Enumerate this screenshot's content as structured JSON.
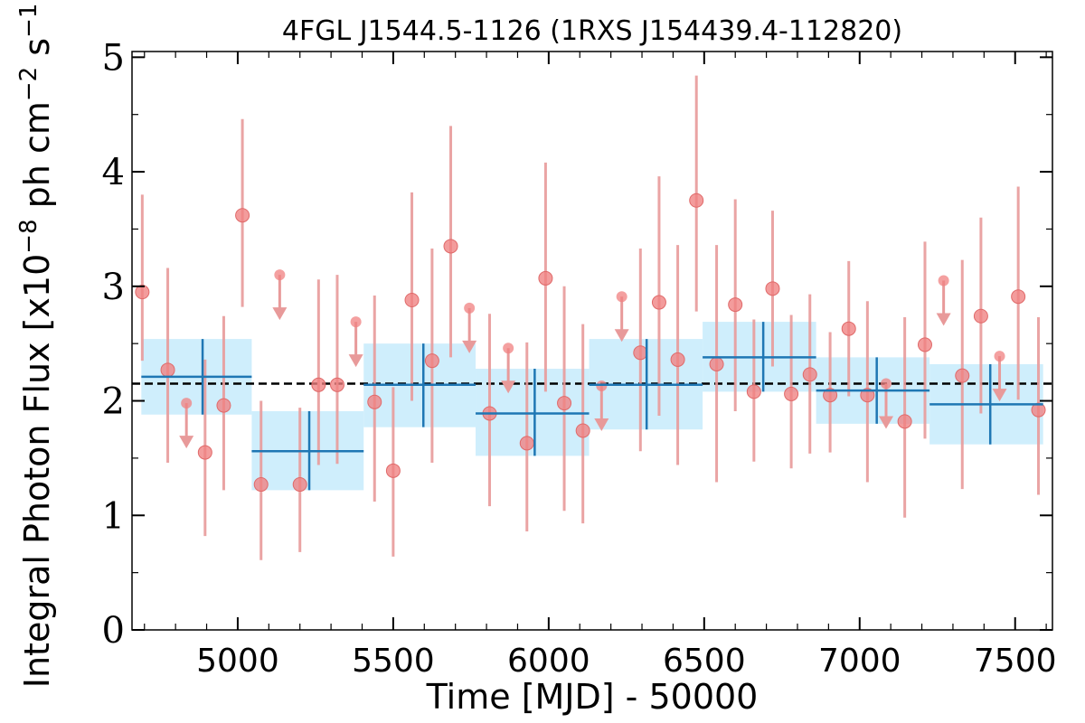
{
  "chart_data": {
    "type": "scatter",
    "title": "4FGL J1544.5-1126 (1RXS J154439.4-112820)",
    "xlabel": "Time [MJD] - 50000",
    "ylabel_parts": [
      "Integral Photon Flux [x10",
      "−8",
      " ph cm",
      "−2",
      " s",
      "−1",
      "]"
    ],
    "xlim": [
      4660,
      7620
    ],
    "ylim": [
      0,
      5.05
    ],
    "xticks": [
      {
        "value": 5000,
        "label": "5000"
      },
      {
        "value": 5500,
        "label": "5500"
      },
      {
        "value": 6000,
        "label": "6000"
      },
      {
        "value": 6500,
        "label": "6500"
      },
      {
        "value": 7000,
        "label": "7000"
      },
      {
        "value": 7500,
        "label": "7500"
      }
    ],
    "yticks": [
      {
        "value": 0,
        "label": "0"
      },
      {
        "value": 1,
        "label": "1"
      },
      {
        "value": 2,
        "label": "2"
      },
      {
        "value": 3,
        "label": "3"
      },
      {
        "value": 4,
        "label": "4"
      },
      {
        "value": 5,
        "label": "5"
      }
    ],
    "mean_flux": 2.15,
    "colors": {
      "points": "#f08080",
      "error_bars": "#e89a9a",
      "bins": "#1f77b4",
      "bin_band": "#cfeefc",
      "mean_line": "#000000"
    },
    "short_bins": [
      {
        "x": 4693,
        "y": 2.95,
        "ylo": 2.35,
        "yhi": 3.8
      },
      {
        "x": 4775,
        "y": 2.27,
        "ylo": 1.46,
        "yhi": 3.16
      },
      {
        "x": 4835,
        "y": 1.98,
        "upper_limit": true
      },
      {
        "x": 4895,
        "y": 1.55,
        "ylo": 0.82,
        "yhi": 2.36
      },
      {
        "x": 4955,
        "y": 1.96,
        "ylo": 1.22,
        "yhi": 2.74
      },
      {
        "x": 5015,
        "y": 3.62,
        "ylo": 2.82,
        "yhi": 4.46
      },
      {
        "x": 5075,
        "y": 1.27,
        "ylo": 0.61,
        "yhi": 2.0
      },
      {
        "x": 5135,
        "y": 3.1,
        "upper_limit": true
      },
      {
        "x": 5200,
        "y": 1.27,
        "ylo": 0.68,
        "yhi": 1.94
      },
      {
        "x": 5260,
        "y": 2.14,
        "ylo": 1.44,
        "yhi": 3.06
      },
      {
        "x": 5320,
        "y": 2.14,
        "ylo": 1.45,
        "yhi": 3.1
      },
      {
        "x": 5380,
        "y": 2.69,
        "upper_limit": true
      },
      {
        "x": 5440,
        "y": 1.99,
        "ylo": 1.12,
        "yhi": 2.92
      },
      {
        "x": 5500,
        "y": 1.39,
        "ylo": 0.64,
        "yhi": 2.12
      },
      {
        "x": 5560,
        "y": 2.88,
        "ylo": 2.0,
        "yhi": 3.82
      },
      {
        "x": 5625,
        "y": 2.35,
        "ylo": 1.46,
        "yhi": 3.33
      },
      {
        "x": 5685,
        "y": 3.35,
        "ylo": 2.38,
        "yhi": 4.4
      },
      {
        "x": 5745,
        "y": 2.81,
        "upper_limit": true
      },
      {
        "x": 5810,
        "y": 1.89,
        "ylo": 1.08,
        "yhi": 2.76
      },
      {
        "x": 5870,
        "y": 2.46,
        "upper_limit": true
      },
      {
        "x": 5930,
        "y": 1.63,
        "ylo": 0.86,
        "yhi": 2.51
      },
      {
        "x": 5990,
        "y": 3.07,
        "ylo": 2.08,
        "yhi": 4.08
      },
      {
        "x": 6050,
        "y": 1.98,
        "ylo": 1.04,
        "yhi": 3.0
      },
      {
        "x": 6110,
        "y": 1.74,
        "ylo": 0.93,
        "yhi": 2.67
      },
      {
        "x": 6170,
        "y": 2.13,
        "upper_limit": true
      },
      {
        "x": 6235,
        "y": 2.91,
        "upper_limit": true
      },
      {
        "x": 6295,
        "y": 2.42,
        "ylo": 1.56,
        "yhi": 3.33
      },
      {
        "x": 6355,
        "y": 2.86,
        "ylo": 1.87,
        "yhi": 3.96
      },
      {
        "x": 6415,
        "y": 2.36,
        "ylo": 1.44,
        "yhi": 3.36
      },
      {
        "x": 6475,
        "y": 3.75,
        "ylo": 2.78,
        "yhi": 4.84
      },
      {
        "x": 6540,
        "y": 2.32,
        "ylo": 1.29,
        "yhi": 3.36
      },
      {
        "x": 6600,
        "y": 2.84,
        "ylo": 1.91,
        "yhi": 3.76
      },
      {
        "x": 6660,
        "y": 2.08,
        "ylo": 1.47,
        "yhi": 2.71
      },
      {
        "x": 6720,
        "y": 2.98,
        "ylo": 2.3,
        "yhi": 3.66
      },
      {
        "x": 6780,
        "y": 2.06,
        "ylo": 1.41,
        "yhi": 2.75
      },
      {
        "x": 6840,
        "y": 2.23,
        "ylo": 1.54,
        "yhi": 2.93
      },
      {
        "x": 6905,
        "y": 2.05,
        "ylo": 1.55,
        "yhi": 2.6
      },
      {
        "x": 6965,
        "y": 2.63,
        "ylo": 2.04,
        "yhi": 3.22
      },
      {
        "x": 7025,
        "y": 2.05,
        "ylo": 1.29,
        "yhi": 2.87
      },
      {
        "x": 7085,
        "y": 2.15,
        "upper_limit": true
      },
      {
        "x": 7145,
        "y": 1.82,
        "ylo": 0.98,
        "yhi": 2.73
      },
      {
        "x": 7210,
        "y": 2.49,
        "ylo": 1.67,
        "yhi": 3.39
      },
      {
        "x": 7270,
        "y": 3.05,
        "upper_limit": true
      },
      {
        "x": 7330,
        "y": 2.22,
        "ylo": 1.23,
        "yhi": 3.23
      },
      {
        "x": 7390,
        "y": 2.74,
        "ylo": 1.89,
        "yhi": 3.6
      },
      {
        "x": 7450,
        "y": 2.39,
        "upper_limit": true
      },
      {
        "x": 7510,
        "y": 2.91,
        "ylo": 2.01,
        "yhi": 3.87
      },
      {
        "x": 7575,
        "y": 1.92,
        "ylo": 1.18,
        "yhi": 2.73
      }
    ],
    "long_bins": [
      {
        "x0": 4690,
        "x1": 5045,
        "xc": 4887,
        "y": 2.21,
        "ylo": 1.88,
        "yhi": 2.54
      },
      {
        "x0": 5045,
        "x1": 5405,
        "xc": 5230,
        "y": 1.56,
        "ylo": 1.22,
        "yhi": 1.91
      },
      {
        "x0": 5405,
        "x1": 5765,
        "xc": 5597,
        "y": 2.14,
        "ylo": 1.77,
        "yhi": 2.5
      },
      {
        "x0": 5765,
        "x1": 6130,
        "xc": 5955,
        "y": 1.89,
        "ylo": 1.52,
        "yhi": 2.28
      },
      {
        "x0": 6130,
        "x1": 6495,
        "xc": 6315,
        "y": 2.14,
        "ylo": 1.75,
        "yhi": 2.54
      },
      {
        "x0": 6495,
        "x1": 6860,
        "xc": 6690,
        "y": 2.38,
        "ylo": 2.08,
        "yhi": 2.69
      },
      {
        "x0": 6860,
        "x1": 7225,
        "xc": 7055,
        "y": 2.09,
        "ylo": 1.8,
        "yhi": 2.38
      },
      {
        "x0": 7225,
        "x1": 7590,
        "xc": 7420,
        "y": 1.97,
        "ylo": 1.62,
        "yhi": 2.32
      }
    ]
  }
}
